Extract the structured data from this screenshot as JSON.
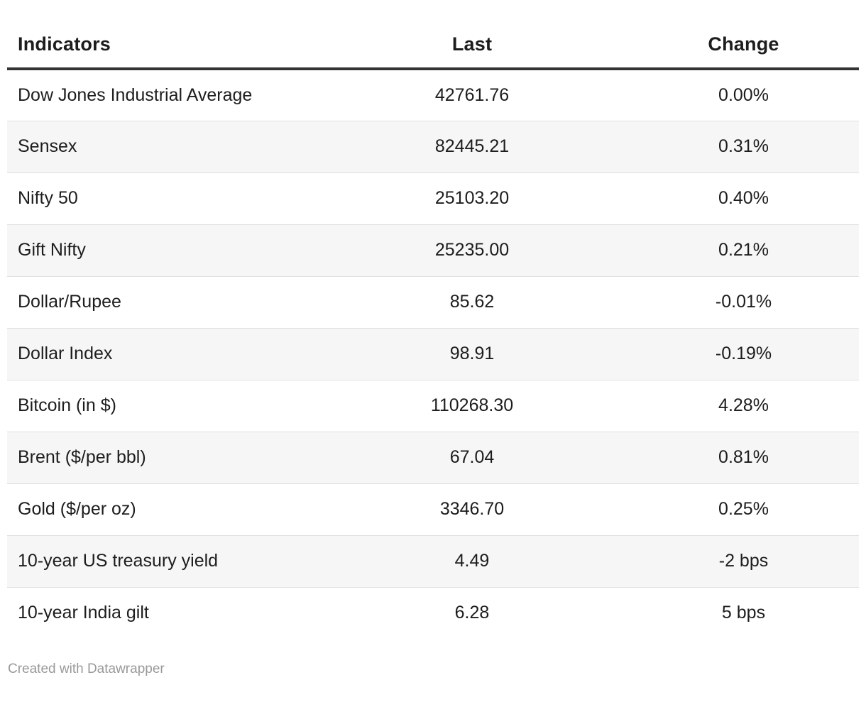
{
  "chart_data": {
    "type": "table",
    "columns": [
      "Indicators",
      "Last",
      "Change"
    ],
    "rows": [
      {
        "indicator": "Dow Jones Industrial Average",
        "last": "42761.76",
        "change": "0.00%"
      },
      {
        "indicator": "Sensex",
        "last": "82445.21",
        "change": "0.31%"
      },
      {
        "indicator": "Nifty 50",
        "last": "25103.20",
        "change": "0.40%"
      },
      {
        "indicator": "Gift Nifty",
        "last": "25235.00",
        "change": "0.21%"
      },
      {
        "indicator": "Dollar/Rupee",
        "last": "85.62",
        "change": "-0.01%"
      },
      {
        "indicator": "Dollar Index",
        "last": "98.91",
        "change": "-0.19%"
      },
      {
        "indicator": "Bitcoin (in $)",
        "last": "110268.30",
        "change": "4.28%"
      },
      {
        "indicator": "Brent ($/per bbl)",
        "last": "67.04",
        "change": "0.81%"
      },
      {
        "indicator": "Gold ($/per oz)",
        "last": "3346.70",
        "change": "0.25%"
      },
      {
        "indicator": "10-year US treasury yield",
        "last": "4.49",
        "change": "-2 bps"
      },
      {
        "indicator": "10-year India gilt",
        "last": "6.28",
        "change": "5 bps"
      }
    ],
    "layout": {
      "striped_rows": true,
      "column_alignment": [
        "left",
        "center",
        "center"
      ]
    }
  },
  "footer": {
    "credit": "Created with Datawrapper"
  },
  "colors": {
    "header_border": "#333333",
    "row_border": "#e0e0e0",
    "stripe": "#f6f6f6",
    "text": "#1d1d1d",
    "footer_text": "#999999"
  }
}
